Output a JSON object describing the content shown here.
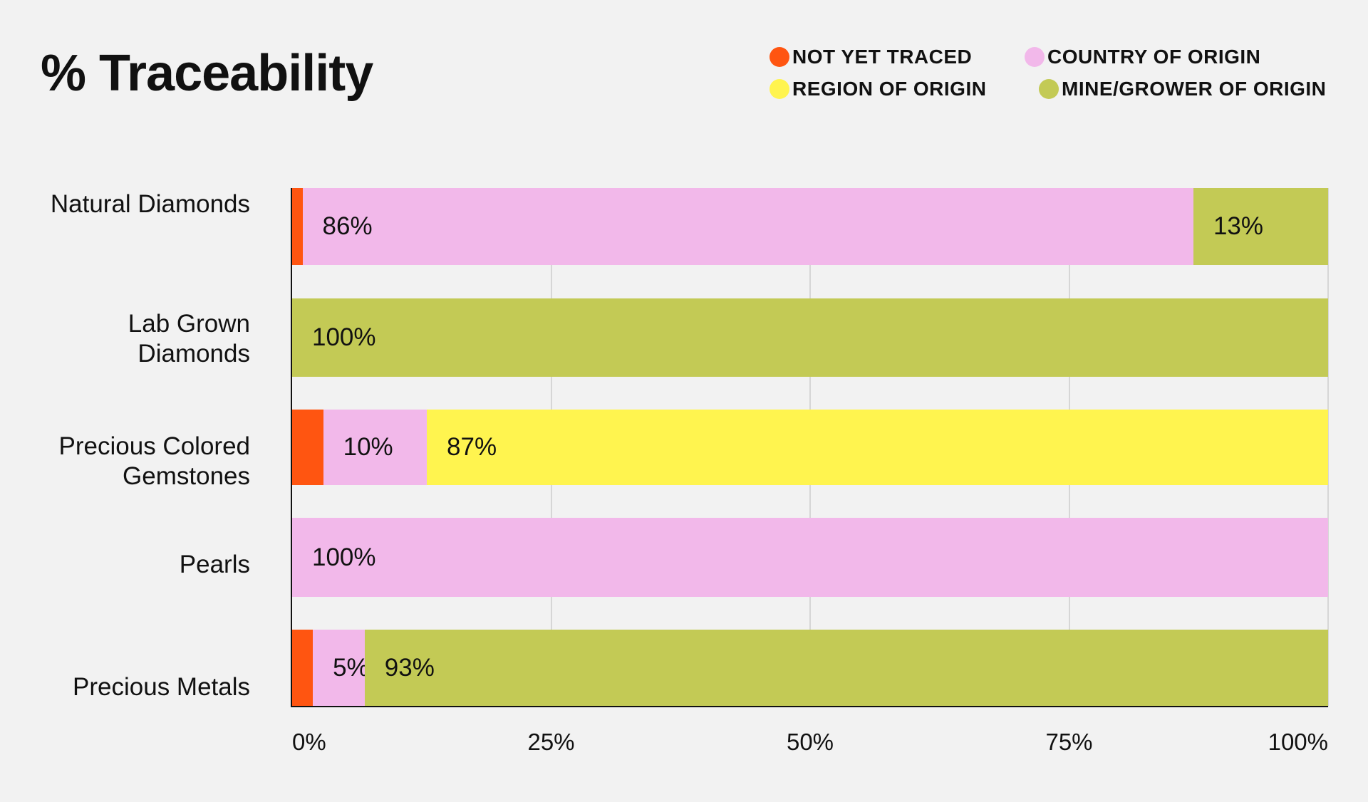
{
  "chart_data": {
    "type": "stacked-bar",
    "title": "% Traceability",
    "categories": [
      "Natural Diamonds",
      "Lab Grown Diamonds",
      "Precious Colored Gemstones",
      "Pearls",
      "Precious Metals"
    ],
    "series": [
      {
        "name": "NOT YET TRACED",
        "color": "#ff5511",
        "values": [
          1,
          null,
          3,
          null,
          2
        ],
        "value_labels": [
          null,
          null,
          null,
          null,
          null
        ]
      },
      {
        "name": "COUNTRY OF ORIGIN",
        "color": "#f2b8ea",
        "values": [
          86,
          null,
          10,
          100,
          5
        ],
        "value_labels": [
          "86%",
          null,
          "10%",
          "100%",
          "5%"
        ]
      },
      {
        "name": "REGION OF ORIGIN",
        "color": "#fff44f",
        "values": [
          null,
          null,
          87,
          null,
          null
        ],
        "value_labels": [
          null,
          null,
          "87%",
          null,
          null
        ]
      },
      {
        "name": "MINE/GROWER OF ORIGIN",
        "color": "#c3ca55",
        "values": [
          13,
          100,
          null,
          null,
          93
        ],
        "value_labels": [
          "13%",
          "100%",
          null,
          null,
          "93%"
        ]
      }
    ],
    "xlim": [
      0,
      100
    ],
    "xticks": [
      {
        "value": 0,
        "label": "0%"
      },
      {
        "value": 25,
        "label": "25%"
      },
      {
        "value": 50,
        "label": "50%"
      },
      {
        "value": 75,
        "label": "75%"
      },
      {
        "value": 100,
        "label": "100%"
      }
    ],
    "grid": true
  }
}
